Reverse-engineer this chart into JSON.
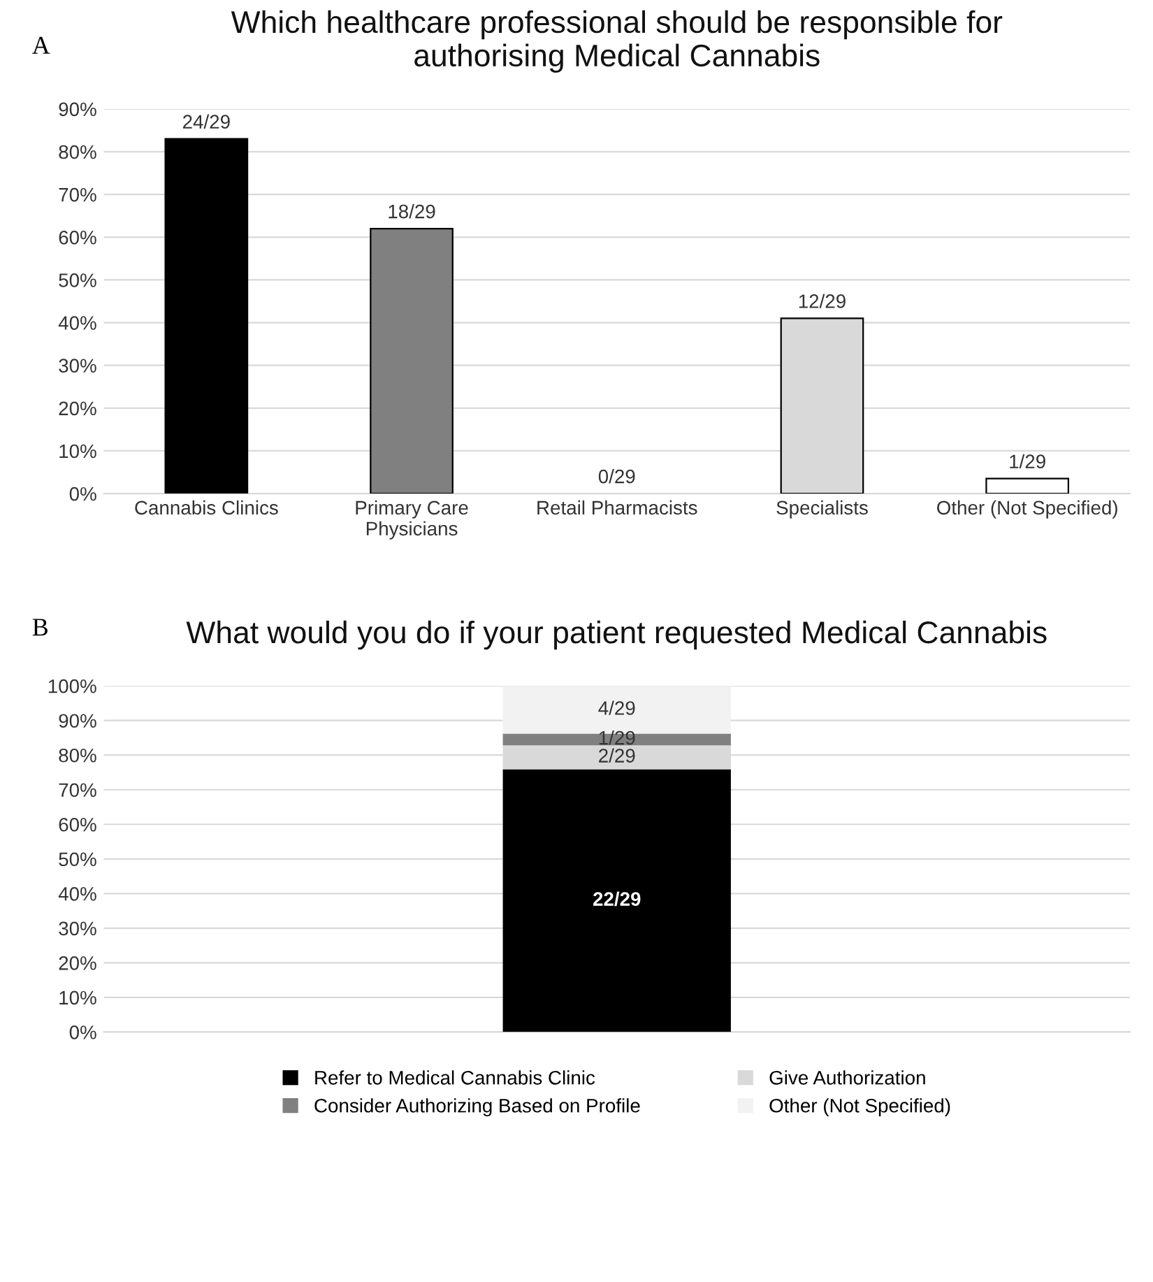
{
  "chart_data": [
    {
      "type": "bar",
      "title": "Which healthcare professional should be responsible for\nauthorising Medical Cannabis",
      "annotations": [
        "A"
      ],
      "categories": [
        "Cannabis Clinics",
        "Primary Care\nPhysicians",
        "Retail Pharmacists",
        "Specialists",
        "Other (Not Specified)"
      ],
      "values": [
        83,
        62,
        0,
        41,
        3.5
      ],
      "colors": [
        "#000000",
        "#808080",
        "#bfbfbf",
        "#d9d9d9",
        "#ffffff"
      ],
      "value_labels": [
        "24/29",
        "18/29",
        "0/29",
        "12/29",
        "1/29"
      ],
      "ylim": [
        0,
        90
      ],
      "yticks": [
        {
          "value": 0,
          "label": "0%"
        },
        {
          "value": 10,
          "label": "10%"
        },
        {
          "value": 20,
          "label": "20%"
        },
        {
          "value": 30,
          "label": "30%"
        },
        {
          "value": 40,
          "label": "40%"
        },
        {
          "value": 50,
          "label": "50%"
        },
        {
          "value": 60,
          "label": "60%"
        },
        {
          "value": 70,
          "label": "70%"
        },
        {
          "value": 80,
          "label": "80%"
        },
        {
          "value": 90,
          "label": "90%"
        }
      ],
      "grid": "y",
      "legend": false
    },
    {
      "type": "bar",
      "title": "What would you do if your patient requested Medical Cannabis",
      "annotations": [
        "B"
      ],
      "stacked": true,
      "categories": [
        null
      ],
      "series": [
        {
          "name": "Refer to Medical Cannabis Clinic",
          "color": "#000000",
          "values": [
            75.9
          ],
          "value_labels": [
            "22/29"
          ]
        },
        {
          "name": "Give Authorization",
          "color": "#d9d9d9",
          "values": [
            6.9
          ],
          "value_labels": [
            "2/29"
          ]
        },
        {
          "name": "Consider Authorizing Based on Profile",
          "color": "#808080",
          "values": [
            3.4
          ],
          "value_labels": [
            "1/29"
          ]
        },
        {
          "name": "Other (Not Specified)",
          "color": "#f2f2f2",
          "values": [
            13.8
          ],
          "value_labels": [
            "4/29"
          ]
        }
      ],
      "ylim": [
        0,
        100
      ],
      "yticks": [
        {
          "value": 0,
          "label": "0%"
        },
        {
          "value": 10,
          "label": "10%"
        },
        {
          "value": 20,
          "label": "20%"
        },
        {
          "value": 30,
          "label": "30%"
        },
        {
          "value": 40,
          "label": "40%"
        },
        {
          "value": 50,
          "label": "50%"
        },
        {
          "value": 60,
          "label": "60%"
        },
        {
          "value": 70,
          "label": "70%"
        },
        {
          "value": 80,
          "label": "80%"
        },
        {
          "value": 90,
          "label": "90%"
        },
        {
          "value": 100,
          "label": "100%"
        }
      ],
      "grid": "y",
      "legend": "bottom"
    }
  ]
}
